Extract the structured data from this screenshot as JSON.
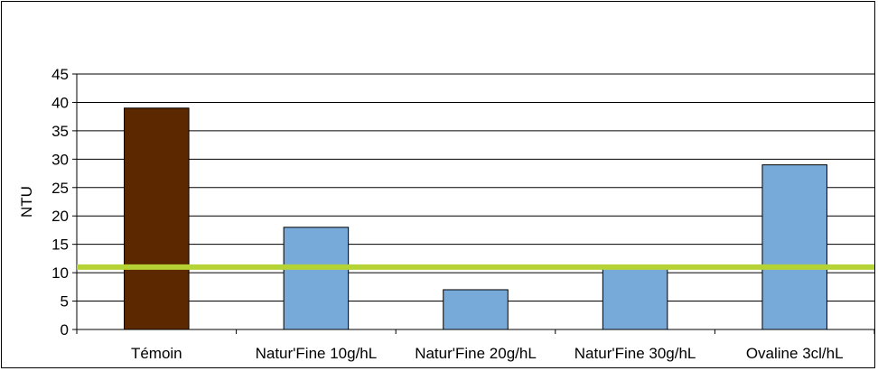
{
  "chart_data": {
    "type": "bar",
    "categories": [
      "Témoin",
      "Natur'Fine 10g/hL",
      "Natur'Fine 20g/hL",
      "Natur'Fine 30g/hL",
      "Ovaline 3cl/hL"
    ],
    "values": [
      39,
      18,
      7,
      11,
      29
    ],
    "bar_colors": [
      "#5C2800",
      "#77A9D9",
      "#77A9D9",
      "#77A9D9",
      "#77A9D9"
    ],
    "ylabel": "NTU",
    "xlabel": "",
    "ylim": [
      0,
      45
    ],
    "yticks": [
      0,
      5,
      10,
      15,
      20,
      25,
      30,
      35,
      40,
      45
    ],
    "reference_line": {
      "value": 11,
      "color": "#B5D334"
    },
    "grid": true,
    "legend": "none"
  }
}
